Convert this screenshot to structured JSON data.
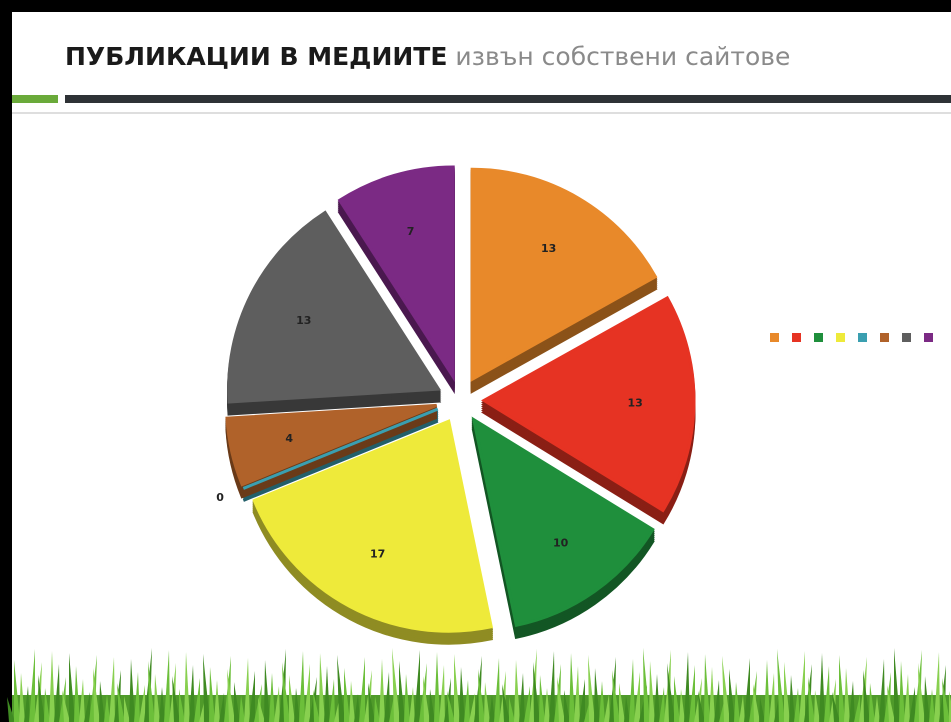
{
  "chart_data": {
    "type": "pie",
    "title": "ПУБЛИКАЦИИ В МЕДИИТЕ",
    "subtitle": "извън собствени сайтове",
    "categories": [
      null,
      null,
      null,
      null,
      null,
      null,
      null,
      null
    ],
    "values": [
      13,
      13,
      10,
      17,
      0,
      4,
      13,
      7
    ],
    "colors": [
      "#e8892a",
      "#e63323",
      "#1f8f3c",
      "#eeea3a",
      "#3a9fb0",
      "#b0622a",
      "#5e5e5e",
      "#7b2a84"
    ],
    "legend": "right"
  }
}
